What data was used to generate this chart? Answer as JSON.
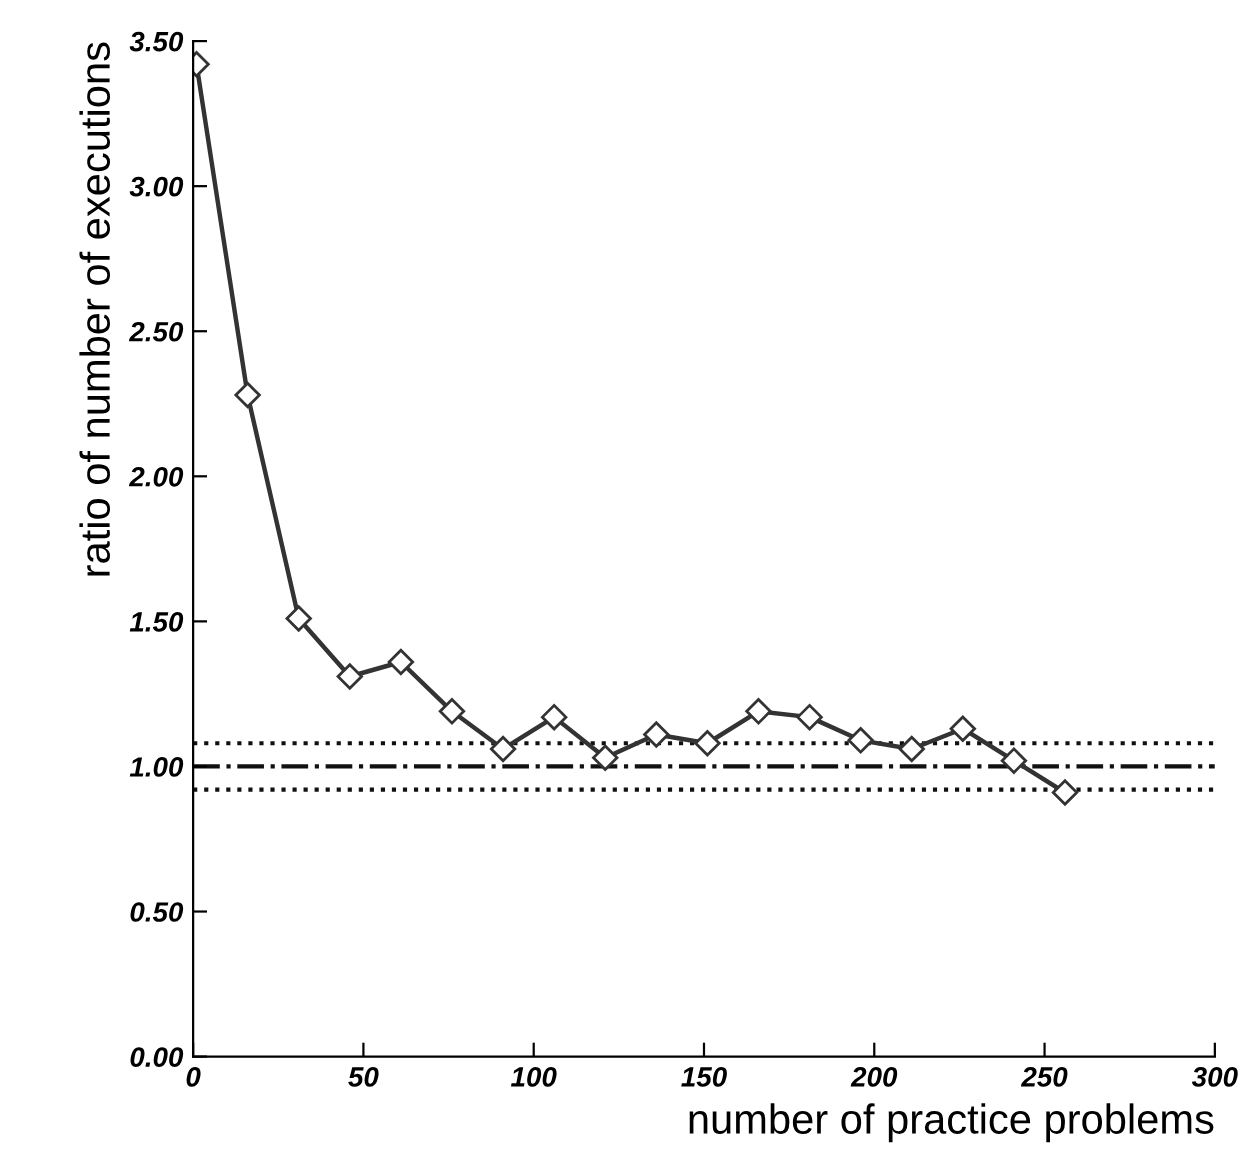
{
  "chart_data": {
    "type": "line",
    "xlabel": "number of practice problems",
    "ylabel": "ratio of number of executions",
    "x": [
      1,
      16,
      31,
      46,
      61,
      76,
      91,
      106,
      121,
      136,
      151,
      166,
      181,
      196,
      211,
      226,
      241,
      256
    ],
    "series": [
      {
        "color": "#333333",
        "values": [
          3.42,
          2.28,
          1.51,
          1.31,
          1.36,
          1.19,
          1.06,
          1.17,
          1.03,
          1.11,
          1.08,
          1.19,
          1.17,
          1.09,
          1.06,
          1.13,
          1.02,
          0.91
        ]
      }
    ],
    "marker": "diamond",
    "line_style": "solid",
    "xlim": [
      0,
      300
    ],
    "xticks": [
      0,
      50,
      100,
      150,
      200,
      250,
      300
    ],
    "ylim": [
      0,
      3.5
    ],
    "yticks": [
      {
        "value": 0,
        "label": "0.00"
      },
      {
        "value": 0.5,
        "label": "0.50"
      },
      {
        "value": 1,
        "label": "1.00"
      },
      {
        "value": 1.5,
        "label": "1.50"
      },
      {
        "value": 2,
        "label": "2.00"
      },
      {
        "value": 2.5,
        "label": "2.50"
      },
      {
        "value": 3,
        "label": "3.00"
      },
      {
        "value": 3.5,
        "label": "3.50"
      }
    ],
    "ref_lines": [
      {
        "axis": "y",
        "value": 1.08,
        "line_style": "dotted",
        "color": "#111111"
      },
      {
        "axis": "y",
        "value": 1.0,
        "line_style": "dashdot",
        "color": "#111111"
      },
      {
        "axis": "y",
        "value": 0.92,
        "line_style": "dotted",
        "color": "#111111"
      }
    ],
    "grid": false,
    "legend": false
  }
}
